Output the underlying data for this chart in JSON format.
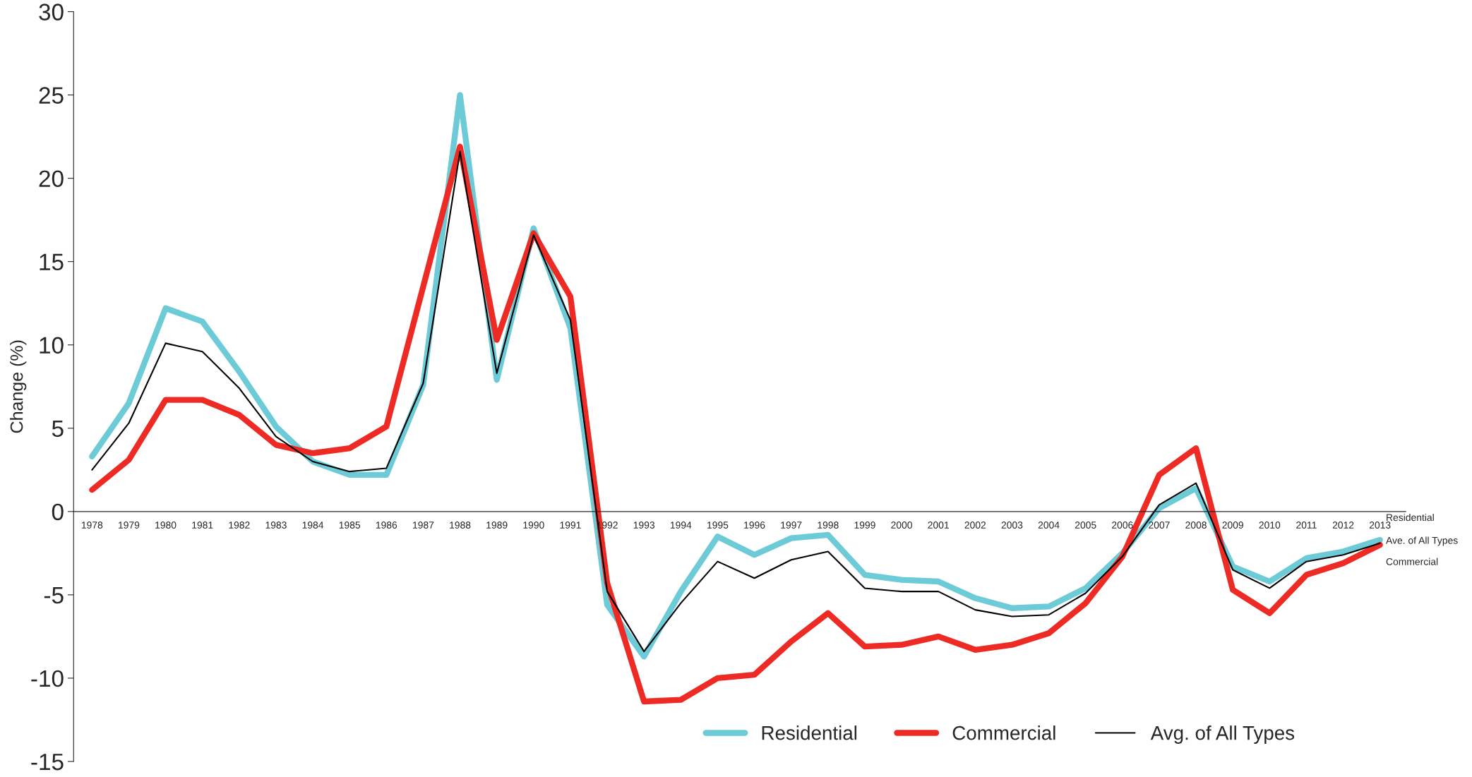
{
  "chart_data": {
    "type": "line",
    "ylabel": "Change (%)",
    "categories": [
      "1978",
      "1979",
      "1980",
      "1981",
      "1982",
      "1983",
      "1984",
      "1985",
      "1986",
      "1987",
      "1988",
      "1989",
      "1990",
      "1991",
      "1992",
      "1993",
      "1994",
      "1995",
      "1996",
      "1997",
      "1998",
      "1999",
      "2000",
      "2001",
      "2002",
      "2003",
      "2004",
      "2005",
      "2006",
      "2007",
      "2008",
      "2009",
      "2010",
      "2011",
      "2012",
      "2013"
    ],
    "series": [
      {
        "name": "Residential",
        "color": "#6ccbd6",
        "values": [
          3.3,
          6.5,
          12.2,
          11.4,
          8.4,
          5.1,
          3.0,
          2.2,
          2.2,
          7.6,
          25.0,
          7.9,
          17.0,
          11.0,
          -5.6,
          -8.7,
          -4.8,
          -1.5,
          -2.6,
          -1.6,
          -1.4,
          -3.8,
          -4.1,
          -4.2,
          -5.2,
          -5.8,
          -5.7,
          -4.6,
          -2.5,
          0.2,
          1.4,
          -3.3,
          -4.2,
          -2.8,
          -2.4,
          -1.7
        ]
      },
      {
        "name": "Commercial",
        "color": "#ee2a24",
        "values": [
          1.3,
          3.1,
          6.7,
          6.7,
          5.8,
          4.0,
          3.5,
          3.8,
          5.1,
          13.5,
          21.9,
          10.3,
          16.7,
          12.9,
          -4.3,
          -11.4,
          -11.3,
          -10.0,
          -9.8,
          -7.8,
          -6.1,
          -8.1,
          -8.0,
          -7.5,
          -8.3,
          -8.0,
          -7.3,
          -5.5,
          -2.7,
          2.2,
          3.8,
          -4.7,
          -6.1,
          -3.8,
          -3.1,
          -2.0
        ]
      },
      {
        "name": "Avg. of All Types",
        "color": "#000000",
        "values": [
          2.5,
          5.3,
          10.1,
          9.6,
          7.4,
          4.5,
          3.0,
          2.4,
          2.6,
          7.7,
          21.6,
          8.3,
          16.6,
          11.5,
          -4.8,
          -8.4,
          -5.5,
          -3.0,
          -4.0,
          -2.9,
          -2.4,
          -4.6,
          -4.8,
          -4.8,
          -5.9,
          -6.3,
          -6.2,
          -4.9,
          -2.7,
          0.4,
          1.7,
          -3.5,
          -4.6,
          -3.0,
          -2.6,
          -1.9
        ]
      }
    ],
    "annotations": [
      {
        "text": "Residential",
        "x": "2013",
        "y": -1.7
      },
      {
        "text": "Ave. of All Types",
        "x": "2013",
        "y": -1.9
      },
      {
        "text": "Commercial",
        "x": "2013",
        "y": -2.0
      }
    ],
    "ylim": [
      -15,
      30
    ],
    "yticks": [
      -15,
      -10,
      -5,
      0,
      5,
      10,
      15,
      20,
      25,
      30
    ],
    "legend": "bottom right",
    "marker": "none",
    "line_style": "solid",
    "grid": false
  }
}
